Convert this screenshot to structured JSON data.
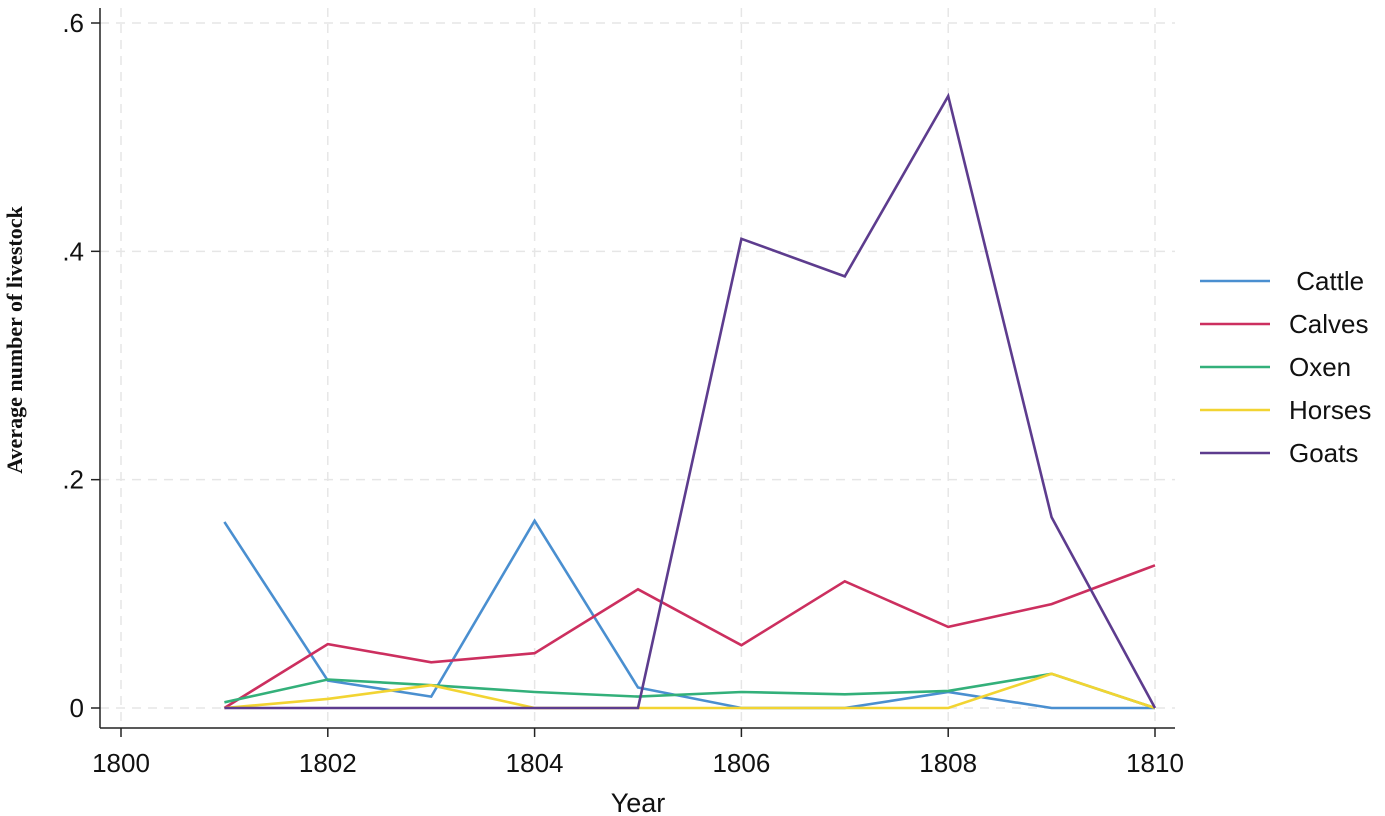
{
  "chart_data": {
    "type": "line",
    "xlabel": "Year",
    "ylabel": "Average number of livestock",
    "xlim": [
      1800,
      1810
    ],
    "ylim": [
      0,
      0.6
    ],
    "x_ticks": [
      1800,
      1802,
      1804,
      1806,
      1808,
      1810
    ],
    "x_tick_labels": [
      "1800",
      "1802",
      "1804",
      "1806",
      "1808",
      "1810"
    ],
    "y_ticks": [
      0,
      0.2,
      0.4,
      0.6
    ],
    "y_tick_labels": [
      "0",
      ".2",
      ".4",
      ".6"
    ],
    "grid": true,
    "legend_position": "right",
    "x": [
      1801,
      1802,
      1803,
      1804,
      1805,
      1806,
      1807,
      1808,
      1809,
      1810
    ],
    "series": [
      {
        "name": " Cattle",
        "color": "#4a8fd0",
        "values": [
          0.163,
          0.024,
          0.01,
          0.164,
          0.018,
          0.0,
          0.0,
          0.014,
          0.0,
          0.0
        ]
      },
      {
        "name": "Calves",
        "color": "#cc2f5f",
        "values": [
          0.0,
          0.056,
          0.04,
          0.048,
          0.104,
          0.055,
          0.111,
          0.071,
          0.091,
          0.125
        ]
      },
      {
        "name": "Oxen",
        "color": "#33b07a",
        "values": [
          0.005,
          0.025,
          0.02,
          0.014,
          0.01,
          0.014,
          0.012,
          0.015,
          0.03,
          0.0
        ]
      },
      {
        "name": "Horses",
        "color": "#f2d432",
        "values": [
          0.0,
          0.008,
          0.02,
          0.0,
          0.0,
          0.0,
          0.0,
          0.0,
          0.03,
          0.0
        ]
      },
      {
        "name": "Goats",
        "color": "#5d3c8e",
        "values": [
          0.0,
          0.0,
          0.0,
          0.0,
          0.0,
          0.411,
          0.378,
          0.536,
          0.167,
          0.0
        ]
      }
    ]
  }
}
